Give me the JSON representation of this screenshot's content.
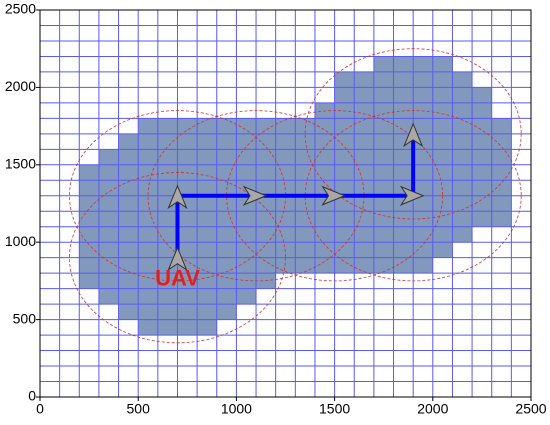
{
  "chart_data": {
    "type": "coverage-map",
    "xlim": [
      0,
      2500
    ],
    "ylim": [
      0,
      2500
    ],
    "xticks": [
      0,
      500,
      1000,
      1500,
      2000,
      2500
    ],
    "yticks": [
      0,
      500,
      1000,
      1500,
      2000,
      2500
    ],
    "grid": true,
    "grid_step": 100,
    "grid_color": "#5a5af0",
    "cell_color": "#8299bd",
    "filled_rows": [
      {
        "y": 400,
        "x": [
          500,
          900
        ]
      },
      {
        "y": 500,
        "x": [
          400,
          1000
        ]
      },
      {
        "y": 600,
        "x": [
          300,
          1100
        ]
      },
      {
        "y": 700,
        "x": [
          200,
          1200
        ]
      },
      {
        "y": 800,
        "x": [
          200,
          2000
        ]
      },
      {
        "y": 900,
        "x": [
          200,
          2100
        ]
      },
      {
        "y": 1000,
        "x": [
          200,
          2200
        ]
      },
      {
        "y": 1100,
        "x": [
          200,
          2400
        ]
      },
      {
        "y": 1200,
        "x": [
          200,
          2400
        ]
      },
      {
        "y": 1300,
        "x": [
          200,
          2400
        ]
      },
      {
        "y": 1400,
        "x": [
          200,
          2400
        ]
      },
      {
        "y": 1500,
        "x": [
          300,
          2400
        ]
      },
      {
        "y": 1600,
        "x": [
          400,
          2400
        ]
      },
      {
        "y": 1700,
        "x": [
          500,
          2400
        ]
      },
      {
        "y": 1800,
        "x": [
          1400,
          2300
        ]
      },
      {
        "y": 1900,
        "x": [
          1500,
          2300
        ]
      },
      {
        "y": 2000,
        "x": [
          1500,
          2200
        ]
      },
      {
        "y": 2100,
        "x": [
          1700,
          2100
        ]
      }
    ],
    "path": {
      "x": [
        700,
        700,
        1100,
        1500,
        1900,
        1900
      ],
      "y": [
        900,
        1300,
        1300,
        1300,
        1300,
        1700
      ],
      "color": "#0000ff"
    },
    "sensor_radius": 550,
    "circle_color": "#d03030",
    "label": "UAV",
    "label_color": "#e02020"
  }
}
